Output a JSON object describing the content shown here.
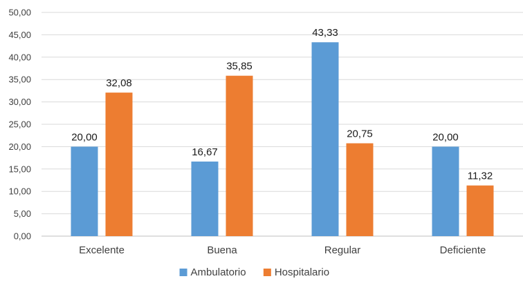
{
  "chart_data": {
    "type": "bar",
    "title": "",
    "xlabel": "",
    "ylabel": "",
    "categories": [
      "Excelente",
      "Buena",
      "Regular",
      "Deficiente"
    ],
    "series": [
      {
        "name": "Ambulatorio",
        "color": "#5B9BD5",
        "values": [
          20.0,
          16.67,
          43.33,
          20.0
        ],
        "labels": [
          "20,00",
          "16,67",
          "43,33",
          "20,00"
        ]
      },
      {
        "name": "Hospitalario",
        "color": "#ED7D31",
        "values": [
          32.08,
          35.85,
          20.75,
          11.32
        ],
        "labels": [
          "32,08",
          "35,85",
          "20,75",
          "11,32"
        ]
      }
    ],
    "ylim": [
      0,
      50
    ],
    "yticks": [
      0,
      5,
      10,
      15,
      20,
      25,
      30,
      35,
      40,
      45,
      50
    ],
    "ytick_labels": [
      "0,00",
      "5,00",
      "10,00",
      "15,00",
      "20,00",
      "25,00",
      "30,00",
      "35,00",
      "40,00",
      "45,00",
      "50,00"
    ],
    "grid": true,
    "legend_position": "bottom-center"
  }
}
